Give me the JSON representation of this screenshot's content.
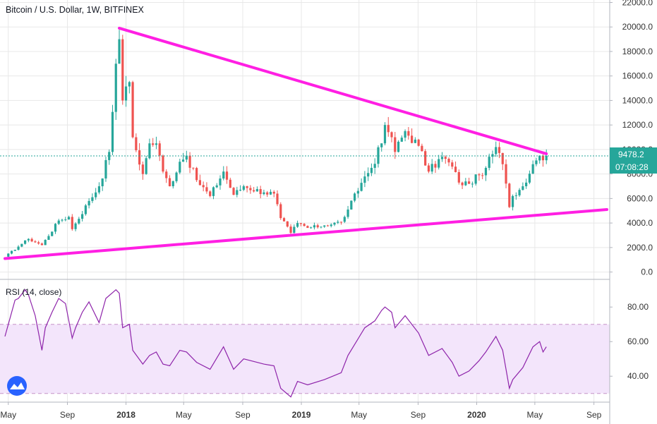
{
  "header": {
    "title": "Bitcoin / U.S. Dollar, 1W, BITFINEX"
  },
  "price_tag": {
    "value": "9478.2",
    "countdown": "07:08:28"
  },
  "colors": {
    "bull": "#26a69a",
    "bear": "#ef5350",
    "trendline": "#ff1fe3",
    "rsi_line": "#8e24aa",
    "rsi_band": "#f3e5fb",
    "rsi_guides": "#c694c8",
    "price_line": "#26a69a",
    "axis_text": "#333333",
    "grid": "#e8e8e8"
  },
  "axes": {
    "price_ticks": [
      "22000.0",
      "20000.0",
      "18000.0",
      "16000.0",
      "14000.0",
      "12000.0",
      "10000.0",
      "8000.0",
      "6000.0",
      "4000.0",
      "2000.0",
      "0.0"
    ],
    "rsi_ticks": [
      "80.00",
      "60.00",
      "40.00"
    ],
    "time_ticks": [
      "May",
      "Sep",
      "2018",
      "May",
      "Sep",
      "2019",
      "May",
      "Sep",
      "2020",
      "May",
      "Sep"
    ]
  },
  "chart_data": [
    {
      "type": "candlestick",
      "title": "Bitcoin / U.S. Dollar, 1W, BITFINEX",
      "ylim": [
        -600,
        22200
      ],
      "x_range": [
        "2017-04-24",
        "2020-09-28"
      ],
      "last_price": 9478.2,
      "anchors": [
        [
          "2017-04-24",
          1250
        ],
        [
          "2017-05-29",
          2300
        ],
        [
          "2017-06-12",
          2700
        ],
        [
          "2017-07-10",
          2200
        ],
        [
          "2017-08-14",
          4200
        ],
        [
          "2017-09-04",
          4500
        ],
        [
          "2017-09-11",
          3500
        ],
        [
          "2017-10-16",
          5800
        ],
        [
          "2017-11-06",
          7000
        ],
        [
          "2017-11-27",
          9800
        ],
        [
          "2017-12-11",
          17000
        ],
        [
          "2017-12-18",
          19000
        ],
        [
          "2017-12-25",
          14000
        ],
        [
          "2018-01-08",
          15500
        ],
        [
          "2018-01-15",
          11000
        ],
        [
          "2018-02-05",
          8000
        ],
        [
          "2018-02-19",
          10500
        ],
        [
          "2018-03-05",
          10500
        ],
        [
          "2018-03-19",
          8200
        ],
        [
          "2018-04-02",
          7000
        ],
        [
          "2018-04-23",
          9000
        ],
        [
          "2018-05-07",
          9500
        ],
        [
          "2018-05-28",
          7500
        ],
        [
          "2018-06-25",
          6200
        ],
        [
          "2018-07-23",
          8200
        ],
        [
          "2018-08-13",
          6300
        ],
        [
          "2018-09-03",
          7000
        ],
        [
          "2018-10-15",
          6500
        ],
        [
          "2018-11-05",
          6400
        ],
        [
          "2018-11-19",
          4400
        ],
        [
          "2018-12-10",
          3200
        ],
        [
          "2018-12-24",
          4000
        ],
        [
          "2019-01-14",
          3600
        ],
        [
          "2019-02-18",
          3800
        ],
        [
          "2019-03-25",
          4100
        ],
        [
          "2019-04-08",
          5100
        ],
        [
          "2019-05-13",
          7800
        ],
        [
          "2019-05-27",
          8500
        ],
        [
          "2019-06-17",
          10500
        ],
        [
          "2019-06-24",
          12000
        ],
        [
          "2019-07-08",
          11000
        ],
        [
          "2019-07-15",
          9800
        ],
        [
          "2019-08-05",
          11500
        ],
        [
          "2019-09-02",
          10300
        ],
        [
          "2019-09-23",
          8200
        ],
        [
          "2019-10-21",
          9400
        ],
        [
          "2019-11-11",
          8600
        ],
        [
          "2019-11-25",
          7300
        ],
        [
          "2019-12-16",
          7200
        ],
        [
          "2020-01-06",
          7900
        ],
        [
          "2020-01-20",
          8500
        ],
        [
          "2020-02-10",
          10200
        ],
        [
          "2020-02-24",
          8800
        ],
        [
          "2020-03-09",
          5300
        ],
        [
          "2020-03-16",
          6200
        ],
        [
          "2020-04-06",
          7000
        ],
        [
          "2020-04-27",
          8800
        ],
        [
          "2020-05-11",
          9500
        ],
        [
          "2020-05-25",
          9478.2
        ]
      ],
      "trendlines": [
        {
          "name": "",
          "from": [
            "2017-12-18",
            19900
          ],
          "to": [
            "2020-05-25",
            9650
          ]
        },
        {
          "name": "",
          "from": [
            "2017-04-24",
            1100
          ],
          "to": [
            "2020-09-28",
            5100
          ]
        }
      ]
    },
    {
      "type": "line",
      "title": "RSI (14, close)",
      "ylim": [
        25,
        96
      ],
      "bands": [
        30,
        70
      ],
      "points": [
        [
          "2017-04-24",
          63
        ],
        [
          "2017-05-01",
          70
        ],
        [
          "2017-05-15",
          84
        ],
        [
          "2017-05-22",
          85
        ],
        [
          "2017-06-05",
          90
        ],
        [
          "2017-06-12",
          87
        ],
        [
          "2017-06-26",
          75
        ],
        [
          "2017-07-10",
          55
        ],
        [
          "2017-07-17",
          68
        ],
        [
          "2017-07-31",
          77
        ],
        [
          "2017-08-14",
          85
        ],
        [
          "2017-08-28",
          82
        ],
        [
          "2017-09-11",
          62
        ],
        [
          "2017-09-18",
          68
        ],
        [
          "2017-10-02",
          77
        ],
        [
          "2017-10-16",
          83
        ],
        [
          "2017-11-06",
          71
        ],
        [
          "2017-11-20",
          85
        ],
        [
          "2017-12-11",
          90
        ],
        [
          "2017-12-18",
          88
        ],
        [
          "2017-12-25",
          68
        ],
        [
          "2018-01-08",
          70
        ],
        [
          "2018-01-15",
          55
        ],
        [
          "2018-02-05",
          47
        ],
        [
          "2018-02-19",
          52
        ],
        [
          "2018-03-05",
          54
        ],
        [
          "2018-03-19",
          47
        ],
        [
          "2018-04-02",
          46
        ],
        [
          "2018-04-23",
          55
        ],
        [
          "2018-05-07",
          54
        ],
        [
          "2018-05-28",
          48
        ],
        [
          "2018-06-25",
          44
        ],
        [
          "2018-07-23",
          57
        ],
        [
          "2018-08-13",
          44
        ],
        [
          "2018-09-03",
          50
        ],
        [
          "2018-10-15",
          47
        ],
        [
          "2018-11-05",
          46
        ],
        [
          "2018-11-19",
          33
        ],
        [
          "2018-12-10",
          28
        ],
        [
          "2018-12-24",
          37
        ],
        [
          "2019-01-14",
          35
        ],
        [
          "2019-02-18",
          38
        ],
        [
          "2019-03-25",
          42
        ],
        [
          "2019-04-08",
          52
        ],
        [
          "2019-05-13",
          68
        ],
        [
          "2019-06-03",
          72
        ],
        [
          "2019-06-17",
          78
        ],
        [
          "2019-06-24",
          80
        ],
        [
          "2019-07-08",
          77
        ],
        [
          "2019-07-15",
          68
        ],
        [
          "2019-08-05",
          75
        ],
        [
          "2019-09-02",
          65
        ],
        [
          "2019-09-23",
          52
        ],
        [
          "2019-10-21",
          56
        ],
        [
          "2019-11-11",
          48
        ],
        [
          "2019-11-25",
          40
        ],
        [
          "2019-12-16",
          43
        ],
        [
          "2020-01-06",
          49
        ],
        [
          "2020-01-20",
          54
        ],
        [
          "2020-02-10",
          63
        ],
        [
          "2020-02-24",
          55
        ],
        [
          "2020-03-09",
          33
        ],
        [
          "2020-03-16",
          38
        ],
        [
          "2020-04-06",
          45
        ],
        [
          "2020-04-27",
          57
        ],
        [
          "2020-05-11",
          60
        ],
        [
          "2020-05-18",
          54
        ],
        [
          "2020-05-25",
          57
        ]
      ]
    }
  ]
}
